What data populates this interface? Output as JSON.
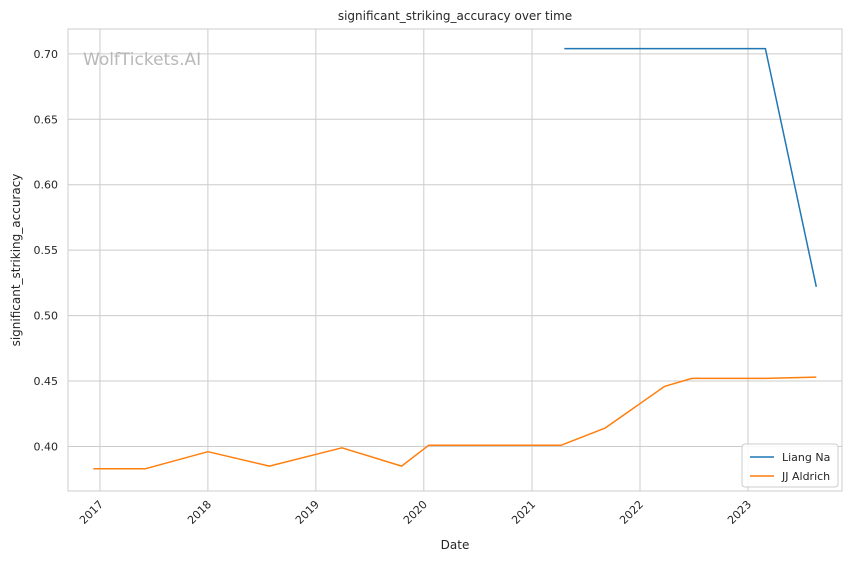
{
  "watermark": "WolfTickets.AI",
  "chart_data": {
    "type": "line",
    "title": "significant_striking_accuracy over time",
    "xlabel": "Date",
    "ylabel": "significant_striking_accuracy",
    "x_axis_type": "date",
    "xlim": [
      "2016-09-15",
      "2023-11-15"
    ],
    "ylim": [
      0.366,
      0.719
    ],
    "x_ticks": [
      "2017",
      "2018",
      "2019",
      "2020",
      "2021",
      "2022",
      "2023"
    ],
    "y_ticks": [
      "0.40",
      "0.45",
      "0.50",
      "0.55",
      "0.60",
      "0.65",
      "0.70"
    ],
    "grid": true,
    "legend_position": "lower-right",
    "series": [
      {
        "name": "Liang Na",
        "color": "#1f77b4",
        "points": [
          {
            "x": "2021-04-20",
            "y": 0.704
          },
          {
            "x": "2023-03-01",
            "y": 0.704
          },
          {
            "x": "2023-08-20",
            "y": 0.522
          }
        ]
      },
      {
        "name": "JJ Aldrich",
        "color": "#ff7f0e",
        "points": [
          {
            "x": "2016-12-10",
            "y": 0.383
          },
          {
            "x": "2017-06-03",
            "y": 0.383
          },
          {
            "x": "2018-01-01",
            "y": 0.396
          },
          {
            "x": "2018-07-28",
            "y": 0.385
          },
          {
            "x": "2019-03-30",
            "y": 0.399
          },
          {
            "x": "2019-10-18",
            "y": 0.385
          },
          {
            "x": "2020-01-18",
            "y": 0.401
          },
          {
            "x": "2021-04-10",
            "y": 0.401
          },
          {
            "x": "2021-09-04",
            "y": 0.414
          },
          {
            "x": "2022-03-26",
            "y": 0.446
          },
          {
            "x": "2022-06-25",
            "y": 0.452
          },
          {
            "x": "2023-03-01",
            "y": 0.452
          },
          {
            "x": "2023-08-20",
            "y": 0.453
          }
        ]
      }
    ]
  }
}
